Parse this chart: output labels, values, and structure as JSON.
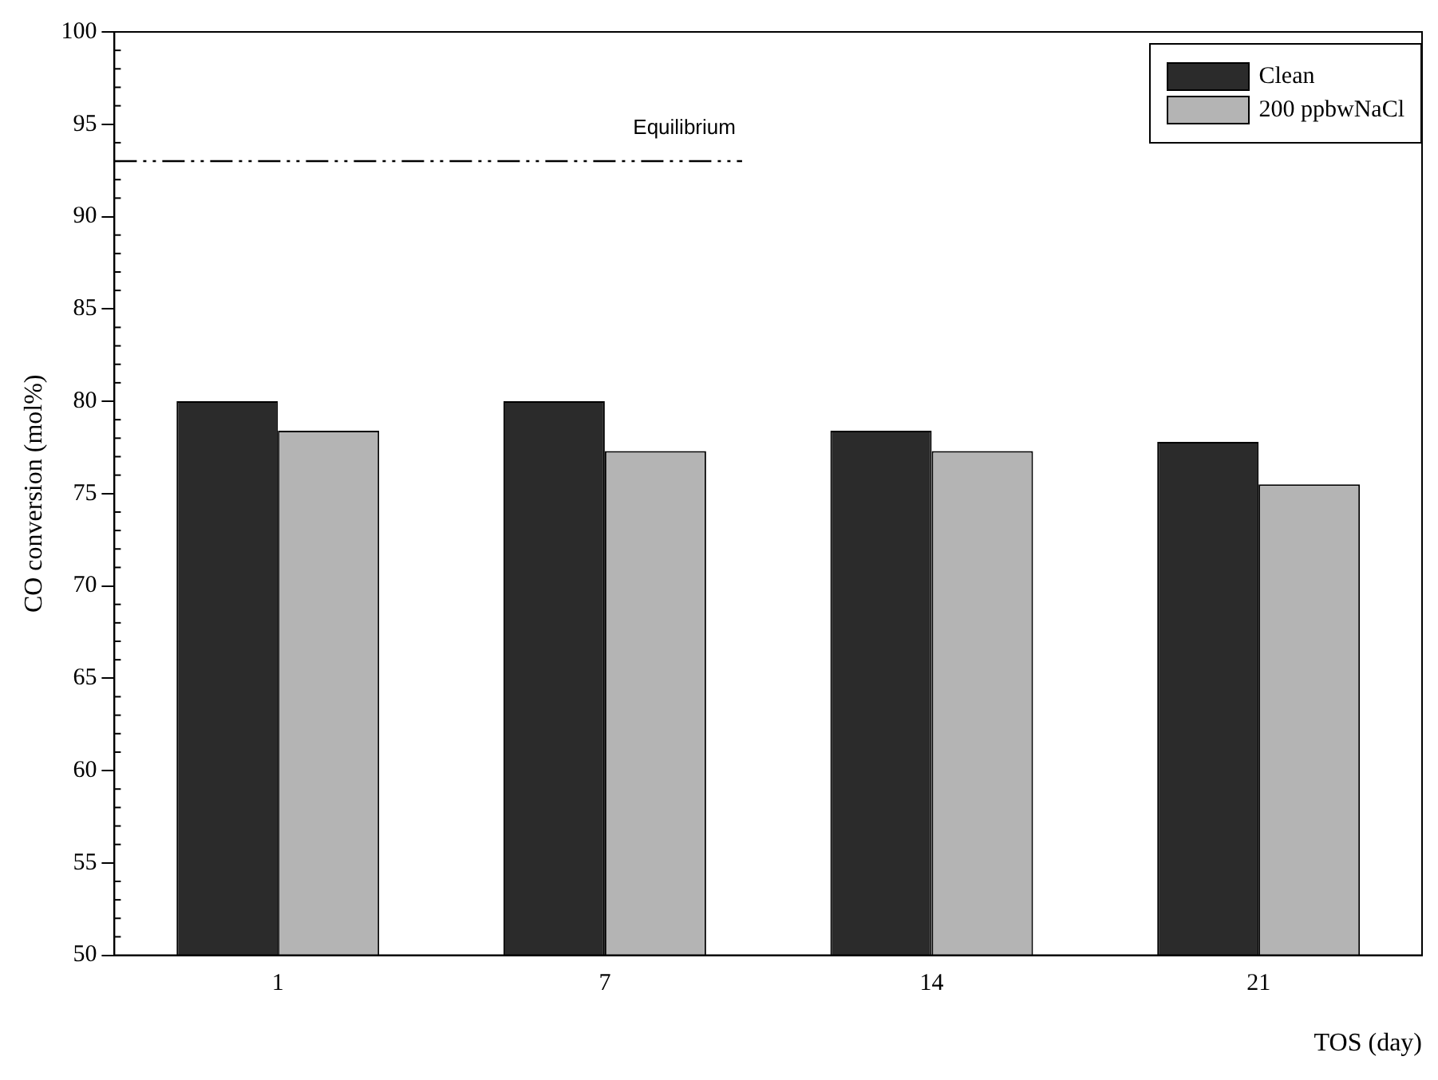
{
  "chart_data": {
    "type": "bar",
    "xlabel": "TOS (day)",
    "ylabel": "CO conversion (mol%)",
    "categories": [
      "1",
      "7",
      "14",
      "21"
    ],
    "series": [
      {
        "name": "Clean",
        "color": "#2b2b2b",
        "values": [
          80,
          80,
          78.4,
          77.8
        ]
      },
      {
        "name": "200 ppbwNaCl",
        "color": "#b4b4b4",
        "values": [
          78.4,
          77.3,
          77.3,
          75.5
        ]
      }
    ],
    "ylim": [
      50,
      100
    ],
    "yticks": [
      50,
      55,
      60,
      65,
      70,
      75,
      80,
      85,
      90,
      95,
      100
    ],
    "grid": false,
    "legend": "top right",
    "ref_lines": [
      {
        "axis": "y",
        "value": 93,
        "label": "Equilibrium",
        "color": "#000000",
        "line_style": "dashed"
      }
    ]
  }
}
